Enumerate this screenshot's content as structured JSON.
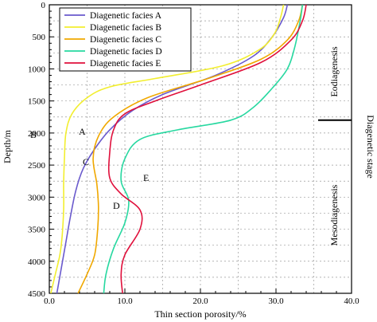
{
  "chart_data": {
    "type": "line",
    "xlabel": "Thin section porosity/%",
    "ylabel": "Depth/m",
    "xlim": [
      0,
      40
    ],
    "ylim": [
      0,
      4500
    ],
    "y_inverted": true,
    "xticks": [
      "0.0",
      "10.0",
      "20.0",
      "30.0",
      "40.0"
    ],
    "yticks": [
      "0",
      "500",
      "1000",
      "1500",
      "2000",
      "2500",
      "3000",
      "3500",
      "4000",
      "4500"
    ],
    "grid": "dashed",
    "legend_position": "top-left",
    "series": [
      {
        "name": "Diagenetic facies A",
        "curve_label": "A",
        "color": "#6a5acd",
        "points": [
          [
            31.5,
            0
          ],
          [
            31,
            200
          ],
          [
            29.5,
            500
          ],
          [
            27,
            800
          ],
          [
            22,
            1100
          ],
          [
            15,
            1400
          ],
          [
            11,
            1650
          ],
          [
            8,
            1950
          ],
          [
            6,
            2250
          ],
          [
            4.5,
            2550
          ],
          [
            3.5,
            2900
          ],
          [
            2.8,
            3300
          ],
          [
            2.2,
            3700
          ],
          [
            1.6,
            4100
          ],
          [
            1,
            4500
          ]
        ]
      },
      {
        "name": "Diagenetic facies B",
        "curve_label": "B",
        "color": "#f2ee2f",
        "points": [
          [
            31,
            0
          ],
          [
            30.6,
            200
          ],
          [
            29.8,
            450
          ],
          [
            27.8,
            700
          ],
          [
            23,
            950
          ],
          [
            14,
            1150
          ],
          [
            8,
            1280
          ],
          [
            5,
            1450
          ],
          [
            3,
            1700
          ],
          [
            2.2,
            2000
          ],
          [
            2,
            2400
          ],
          [
            1.9,
            2800
          ],
          [
            1.9,
            3200
          ],
          [
            1.7,
            3600
          ],
          [
            1.4,
            3900
          ],
          [
            0.8,
            4200
          ],
          [
            0.2,
            4500
          ]
        ]
      },
      {
        "name": "Diagenetic facies C",
        "curve_label": "C",
        "color": "#f0a800",
        "points": [
          [
            33.5,
            0
          ],
          [
            33,
            250
          ],
          [
            31.5,
            550
          ],
          [
            28,
            850
          ],
          [
            21,
            1150
          ],
          [
            13,
            1450
          ],
          [
            8.5,
            1750
          ],
          [
            6.5,
            2050
          ],
          [
            5.8,
            2400
          ],
          [
            6.3,
            2800
          ],
          [
            6.5,
            3150
          ],
          [
            6.4,
            3500
          ],
          [
            6,
            3900
          ],
          [
            5,
            4200
          ],
          [
            3.8,
            4500
          ]
        ]
      },
      {
        "name": "Diagenetic facies D",
        "curve_label": "D",
        "color": "#27d8a0",
        "points": [
          [
            33.5,
            0
          ],
          [
            33.2,
            250
          ],
          [
            32.5,
            650
          ],
          [
            31.5,
            1000
          ],
          [
            29.5,
            1300
          ],
          [
            27,
            1600
          ],
          [
            24,
            1800
          ],
          [
            17,
            1950
          ],
          [
            12,
            2100
          ],
          [
            10,
            2400
          ],
          [
            9.5,
            2750
          ],
          [
            10.5,
            3050
          ],
          [
            10,
            3400
          ],
          [
            8.5,
            3800
          ],
          [
            7.5,
            4200
          ],
          [
            7.2,
            4500
          ]
        ]
      },
      {
        "name": "Diagenetic facies E",
        "curve_label": "E",
        "color": "#e0103c",
        "points": [
          [
            34,
            0
          ],
          [
            33.5,
            250
          ],
          [
            32,
            550
          ],
          [
            28,
            900
          ],
          [
            20,
            1250
          ],
          [
            14,
            1500
          ],
          [
            10,
            1700
          ],
          [
            8.5,
            1950
          ],
          [
            8,
            2300
          ],
          [
            8,
            2700
          ],
          [
            9.5,
            2950
          ],
          [
            12,
            3200
          ],
          [
            12,
            3500
          ],
          [
            10,
            3900
          ],
          [
            9.5,
            4200
          ],
          [
            9.7,
            4500
          ]
        ]
      }
    ],
    "stage_axis": {
      "title": "Diagenetic stage",
      "boundary_depth": 1800,
      "upper_label": "Eodiagenesis",
      "lower_label": "Mesodiagenesis"
    }
  }
}
